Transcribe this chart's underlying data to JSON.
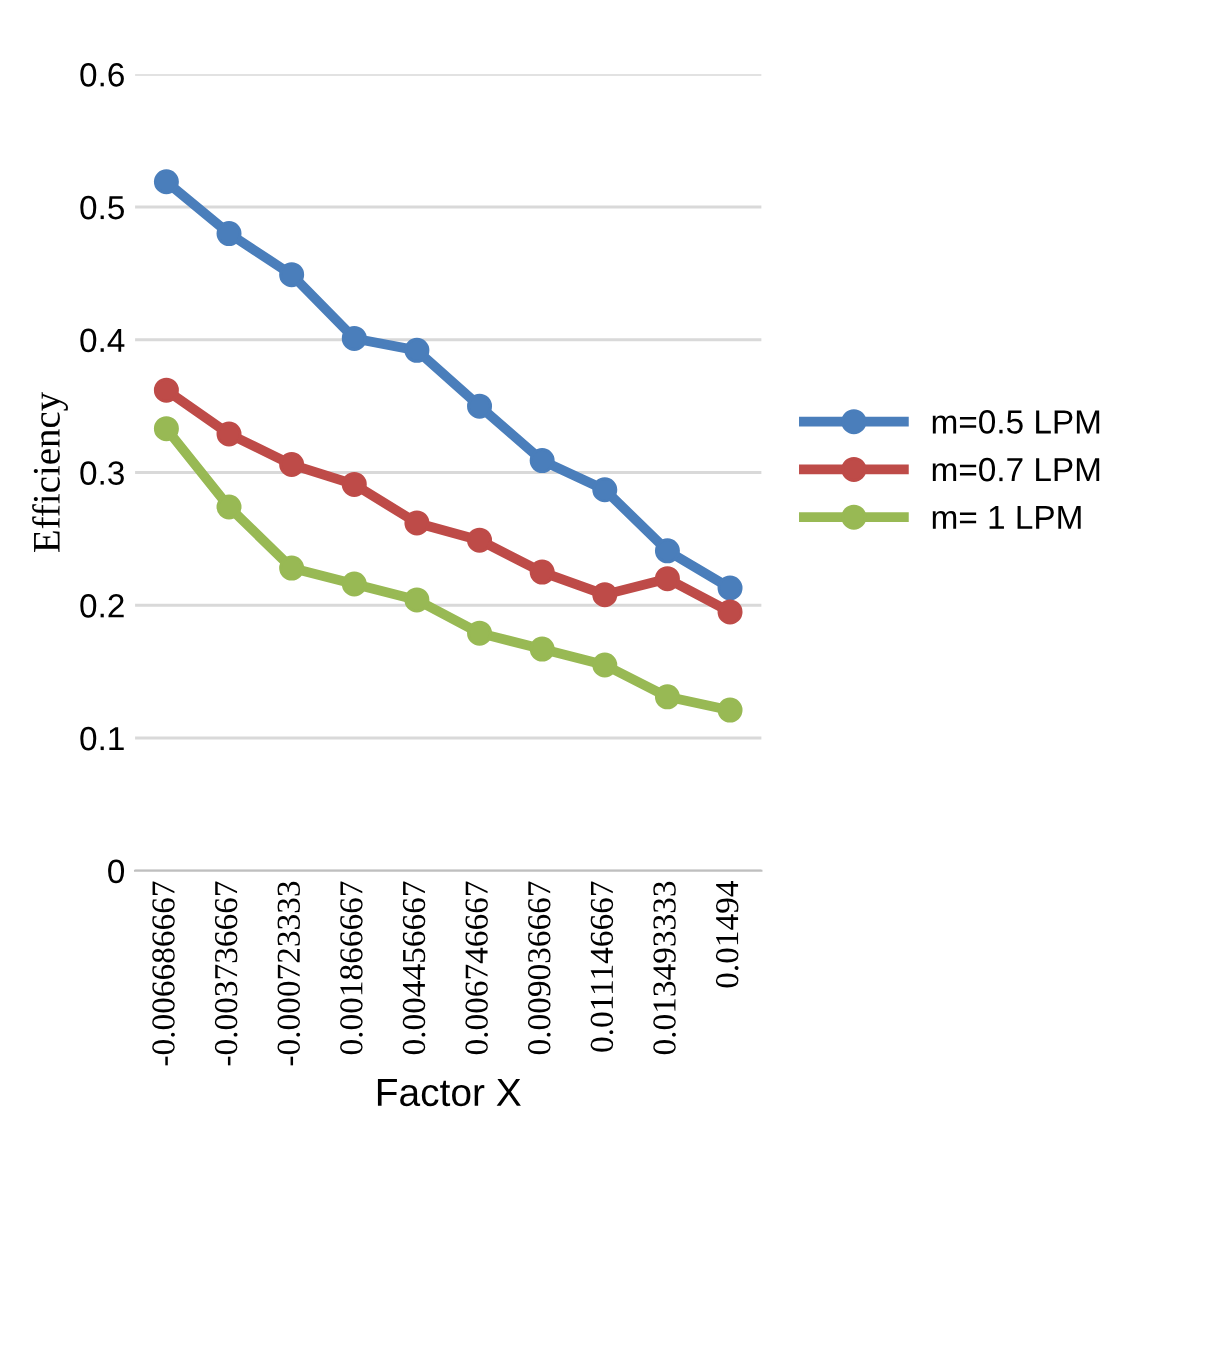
{
  "chart_data": {
    "type": "line",
    "xlabel": "Factor X",
    "ylabel": "Efficiency",
    "categories": [
      "-0.006686667",
      "-0.003736667",
      "-0.000723333",
      "0.001866667",
      "0.004456667",
      "0.006746667",
      "0.009036667",
      "0.011146667",
      "0.013493333",
      "0.01494"
    ],
    "series": [
      {
        "name": "m=0.5 LPM",
        "color": "#4a7ebb",
        "values": [
          0.519,
          0.48,
          0.449,
          0.401,
          0.392,
          0.35,
          0.309,
          0.287,
          0.241,
          0.213
        ]
      },
      {
        "name": "m=0.7 LPM",
        "color": "#be4b48",
        "values": [
          0.362,
          0.329,
          0.306,
          0.291,
          0.262,
          0.249,
          0.225,
          0.208,
          0.22,
          0.195
        ]
      },
      {
        "name": "m= 1 LPM",
        "color": "#98b954",
        "values": [
          0.333,
          0.274,
          0.228,
          0.216,
          0.204,
          0.179,
          0.167,
          0.155,
          0.131,
          0.121
        ]
      }
    ],
    "ylim": [
      0,
      0.6
    ],
    "yticks": [
      0,
      0.1,
      0.2,
      0.3,
      0.4,
      0.5,
      0.6
    ],
    "grid": "y",
    "legend": "right",
    "marker": "circle",
    "line_style": "solid"
  }
}
